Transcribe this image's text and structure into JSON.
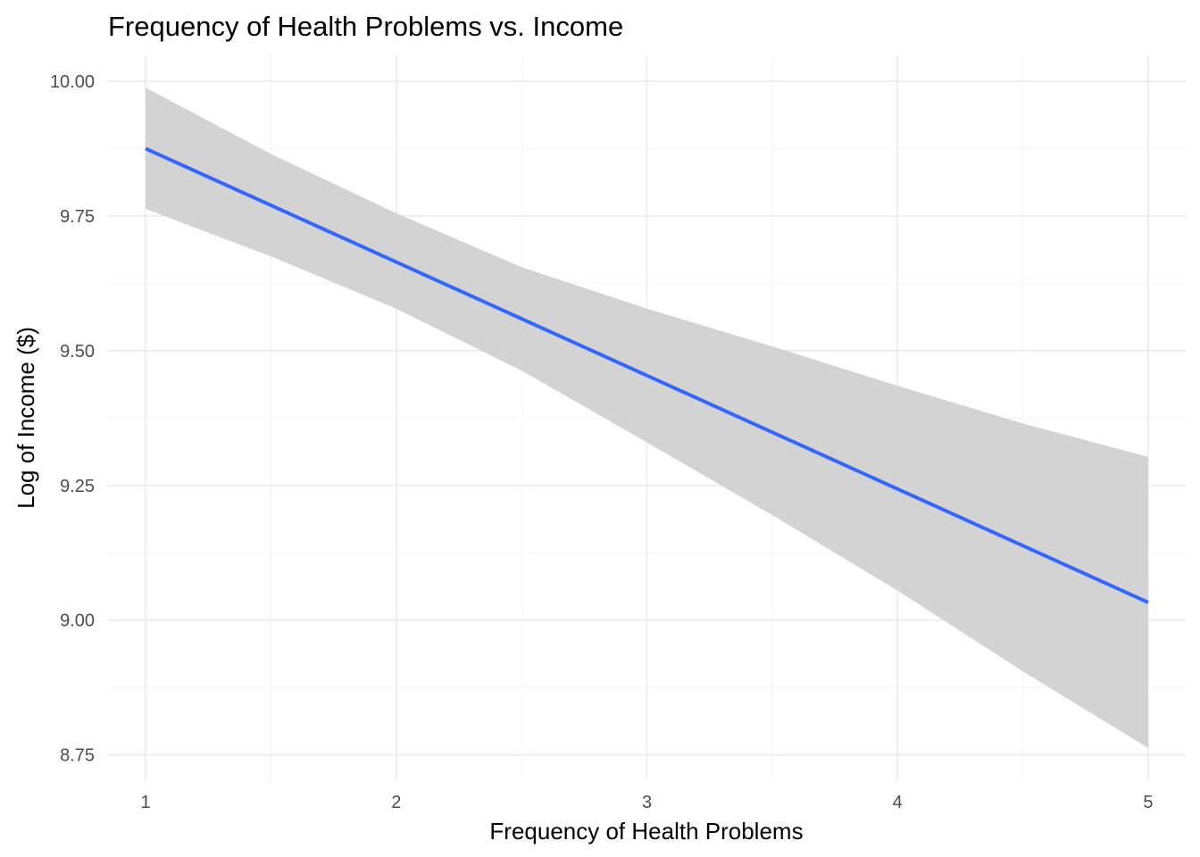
{
  "chart_data": {
    "type": "line",
    "title": "Frequency of Health Problems vs. Income",
    "xlabel": "Frequency of Health Problems",
    "ylabel": "Log of Income ($)",
    "xlim": [
      0.85,
      5.15
    ],
    "ylim": [
      8.703,
      10.048
    ],
    "x_ticks": [
      1,
      2,
      3,
      4,
      5
    ],
    "x_tick_labels": [
      "1",
      "2",
      "3",
      "4",
      "5"
    ],
    "y_ticks": [
      8.75,
      9.0,
      9.25,
      9.5,
      9.75,
      10.0
    ],
    "y_tick_labels": [
      "8.75",
      "9.00",
      "9.25",
      "9.50",
      "9.75",
      "10.00"
    ],
    "x_minor_ticks": [
      1.5,
      2.5,
      3.5,
      4.5
    ],
    "y_minor_ticks": [
      8.875,
      9.125,
      9.375,
      9.625,
      9.875
    ],
    "grid": true,
    "legend": "none",
    "series": [
      {
        "x": [
          1,
          5
        ],
        "y": [
          9.875,
          9.033
        ],
        "color": "#3366ff"
      }
    ],
    "confidence_band": {
      "x": [
        1.0,
        1.5,
        2.0,
        2.5,
        3.0,
        3.5,
        4.0,
        4.5,
        5.0
      ],
      "lower": [
        9.763,
        9.675,
        9.578,
        9.463,
        9.33,
        9.195,
        9.055,
        8.905,
        8.763
      ],
      "upper": [
        9.988,
        9.865,
        9.755,
        9.655,
        9.578,
        9.508,
        9.435,
        9.365,
        9.303
      ],
      "color": "#d3d3d3"
    }
  }
}
